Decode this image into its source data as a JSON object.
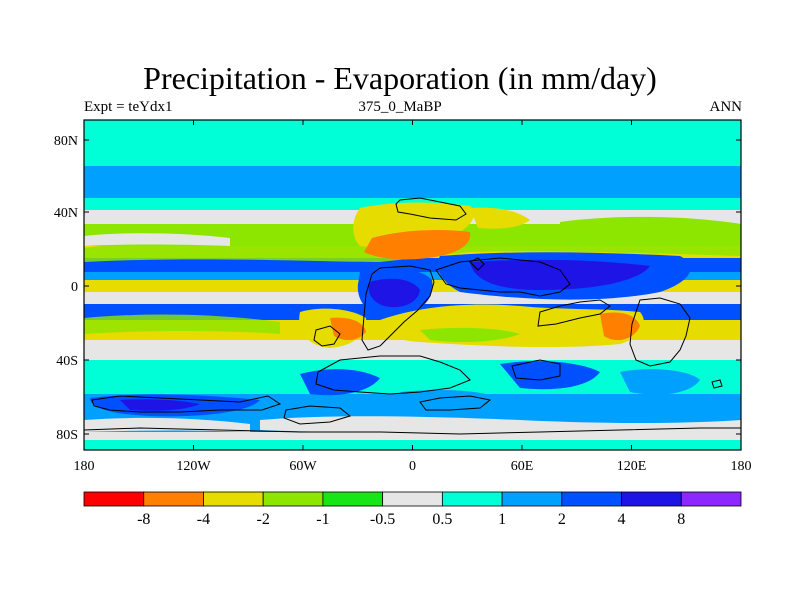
{
  "title": "Precipitation - Evaporation (in mm/day)",
  "left_label": "Expt = teYdx1",
  "center_label": "375_0_MaBP",
  "right_label": "ANN",
  "x_ticks": [
    "180",
    "120W",
    "60W",
    "0",
    "60E",
    "120E",
    "180"
  ],
  "y_ticks": [
    "80N",
    "40N",
    "0",
    "40S",
    "80S"
  ],
  "colorbar": {
    "colors": [
      "#ff0000",
      "#ff7f00",
      "#e6dc00",
      "#8ce600",
      "#16e616",
      "#e6e6e6",
      "#00ffd7",
      "#00a0ff",
      "#0050ff",
      "#1e14e6",
      "#8c28ff"
    ],
    "labels": [
      "-8",
      "-4",
      "-2",
      "-1",
      "-0.5",
      "0.5",
      "1",
      "2",
      "4",
      "8"
    ]
  }
}
